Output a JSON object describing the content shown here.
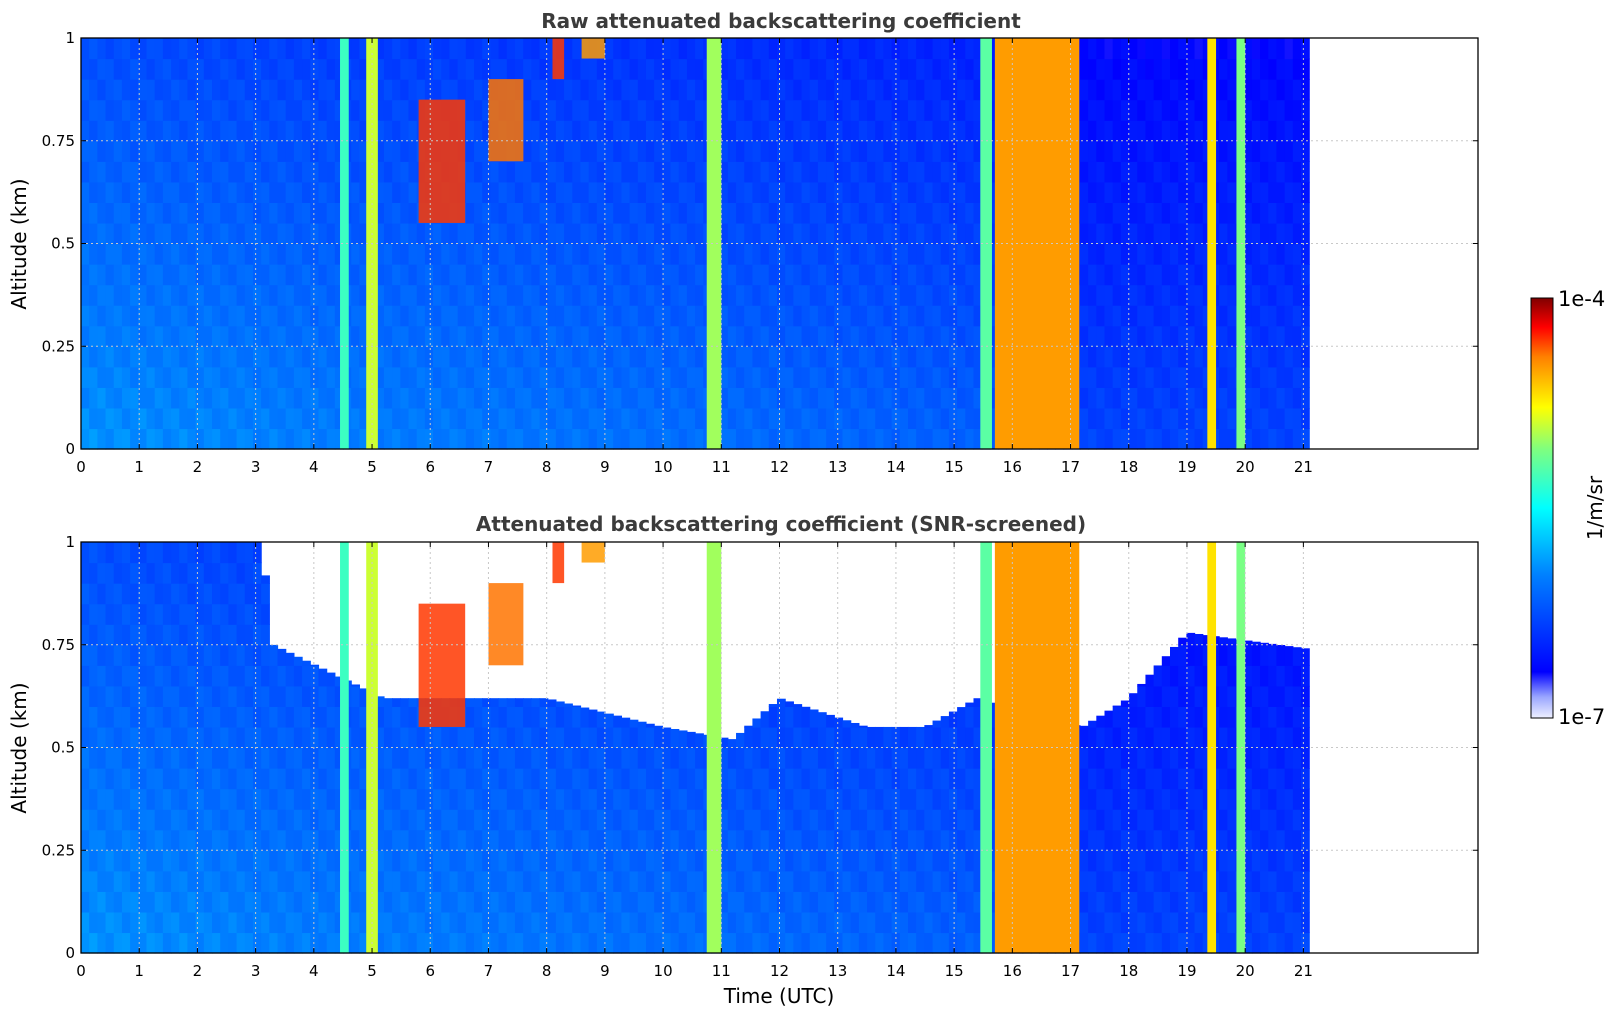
{
  "chart_data": [
    {
      "type": "heatmap",
      "title": "Raw attenuated backscattering coefficient",
      "xlabel": "",
      "ylabel": "Altitude (km)",
      "xlim": [
        0,
        24
      ],
      "ylim": [
        0,
        1
      ],
      "xticks": [
        "0",
        "1",
        "2",
        "3",
        "4",
        "5",
        "6",
        "7",
        "8",
        "9",
        "10",
        "11",
        "12",
        "13",
        "14",
        "15",
        "16",
        "17",
        "18",
        "19",
        "20",
        "21"
      ],
      "yticks": [
        "0",
        "0.25",
        "0.5",
        "0.75",
        "1"
      ],
      "grid": true,
      "data_time_range": [
        0,
        21.1
      ],
      "log10_background": {
        "times": [
          0,
          4.5,
          6,
          15.5,
          17.2,
          21.1
        ],
        "log10_values": [
          -5.9,
          -6.0,
          -6.0,
          -6.15,
          -6.3,
          -6.3
        ]
      },
      "vertical_features": [
        {
          "t0": 4.45,
          "t1": 4.6,
          "log10": -5.3
        },
        {
          "t0": 4.9,
          "t1": 5.1,
          "log10": -4.9
        },
        {
          "t0": 10.75,
          "t1": 11.0,
          "log10": -5.0
        },
        {
          "t0": 15.45,
          "t1": 15.65,
          "log10": -5.2
        },
        {
          "t0": 15.7,
          "t1": 17.15,
          "log10": -4.5
        },
        {
          "t0": 19.35,
          "t1": 19.5,
          "log10": -4.7
        },
        {
          "t0": 19.85,
          "t1": 20.0,
          "log10": -5.1
        }
      ],
      "cloud_features": [
        {
          "t0": 5.8,
          "t1": 6.6,
          "alt_low": 0.55,
          "alt_high": 0.85,
          "log10": -4.3
        },
        {
          "t0": 7.0,
          "t1": 7.6,
          "alt_low": 0.7,
          "alt_high": 0.9,
          "log10": -4.4
        },
        {
          "t0": 8.1,
          "t1": 8.3,
          "alt_low": 0.9,
          "alt_high": 1.0,
          "log10": -4.3
        },
        {
          "t0": 8.6,
          "t1": 9.0,
          "alt_low": 0.95,
          "alt_high": 1.0,
          "log10": -4.5
        }
      ]
    },
    {
      "type": "heatmap",
      "title": "Attenuated backscattering coefficient (SNR-screened)",
      "xlabel": "Time (UTC)",
      "ylabel": "Altitude (km)",
      "xlim": [
        0,
        24
      ],
      "ylim": [
        0,
        1
      ],
      "xticks": [
        "0",
        "1",
        "2",
        "3",
        "4",
        "5",
        "6",
        "7",
        "8",
        "9",
        "10",
        "11",
        "12",
        "13",
        "14",
        "15",
        "16",
        "17",
        "18",
        "19",
        "20",
        "21"
      ],
      "yticks": [
        "0",
        "0.25",
        "0.5",
        "0.75",
        "1"
      ],
      "grid": true,
      "data_time_range": [
        0,
        21.1
      ],
      "screened_top_altitude": {
        "times": [
          0,
          3.1,
          3.3,
          5.2,
          6,
          8,
          10,
          11.2,
          12,
          13.5,
          14.5,
          15.4,
          17.2,
          18,
          19,
          21.1
        ],
        "alt": [
          1.0,
          1.0,
          0.75,
          0.62,
          0.62,
          0.62,
          0.55,
          0.52,
          0.62,
          0.55,
          0.55,
          0.62,
          0.55,
          0.62,
          0.78,
          0.74
        ]
      }
    }
  ],
  "colorbar": {
    "label": "1/m/sr",
    "max_label": "1e-4",
    "min_label": "1e-7",
    "scale": "log",
    "colormap": "jet"
  }
}
